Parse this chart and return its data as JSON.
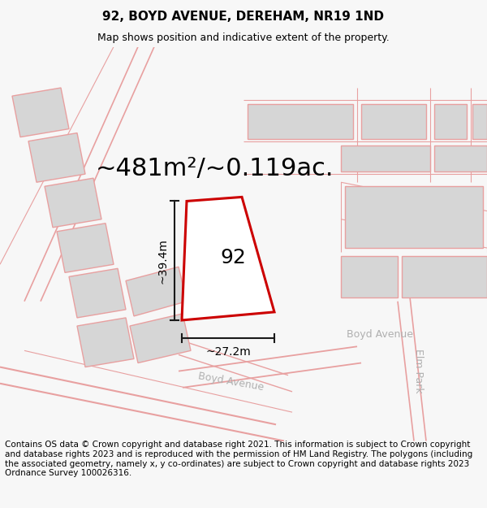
{
  "title": "92, BOYD AVENUE, DEREHAM, NR19 1ND",
  "subtitle": "Map shows position and indicative extent of the property.",
  "footer": "Contains OS data © Crown copyright and database right 2021. This information is subject to Crown copyright and database rights 2023 and is reproduced with the permission of HM Land Registry. The polygons (including the associated geometry, namely x, y co-ordinates) are subject to Crown copyright and database rights 2023 Ordnance Survey 100026316.",
  "area_text": "~481m²/~0.119ac.",
  "width_text": "~27.2m",
  "height_text": "~39.4m",
  "label_92": "92",
  "road_boyd1": "Boyd Avenue",
  "road_boyd2": "Boyd Avenue",
  "road_elm": "Elm Park",
  "background_color": "#f7f7f7",
  "map_bg": "#ffffff",
  "plot_fill": "#ffffff",
  "plot_edge": "#cc0000",
  "building_fill": "#d6d6d6",
  "road_line_color": "#e8a0a0",
  "dim_line_color": "#1a1a1a",
  "title_fontsize": 11,
  "subtitle_fontsize": 9,
  "footer_fontsize": 7.5,
  "area_fontsize": 22,
  "dim_fontsize": 10,
  "label_fontsize": 18,
  "road_fontsize": 9
}
